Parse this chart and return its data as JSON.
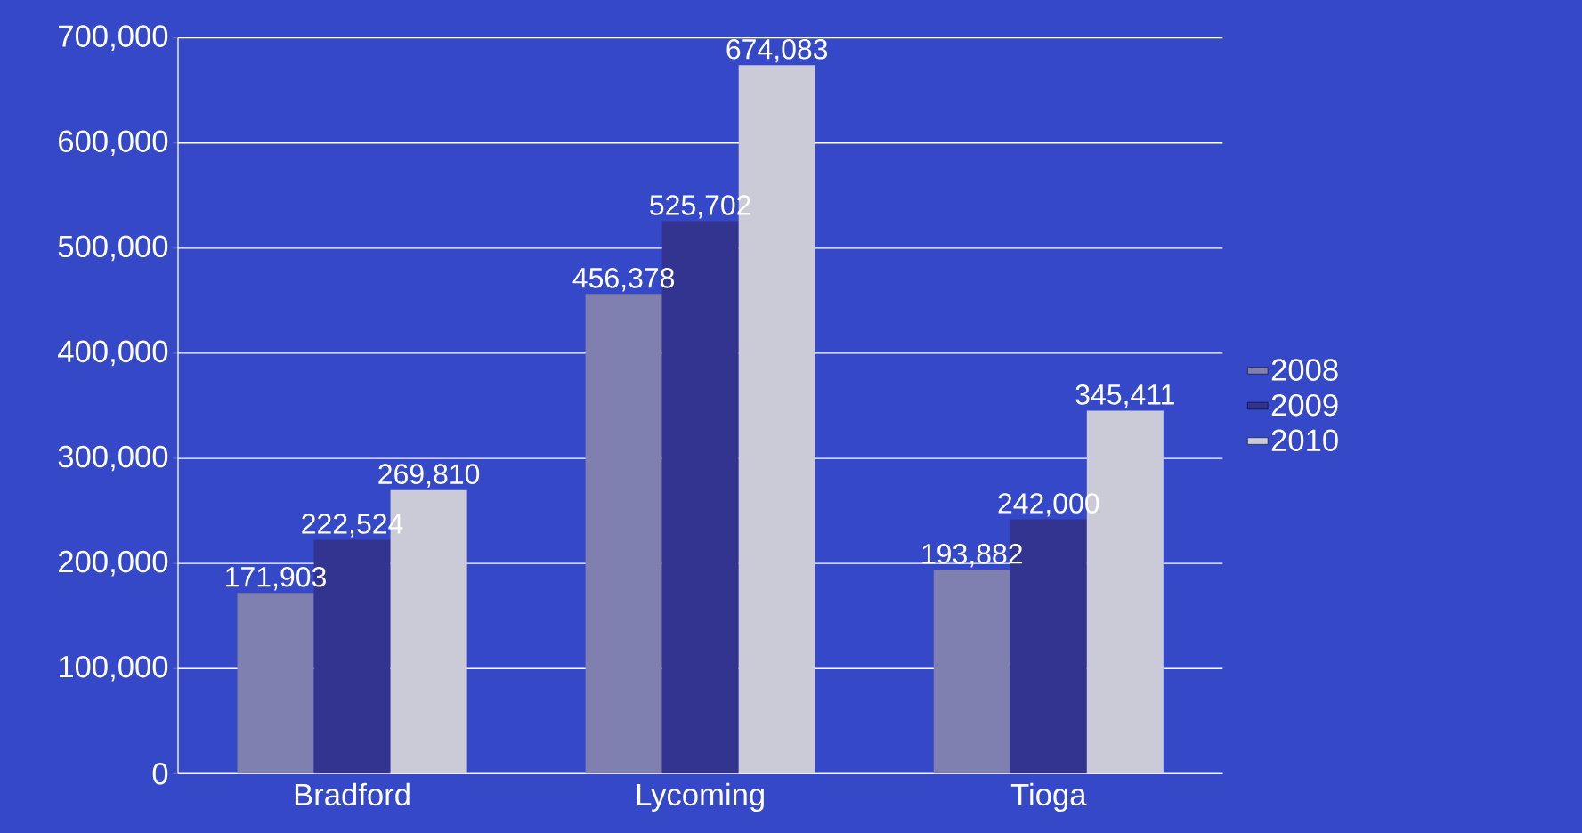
{
  "chart_data": {
    "type": "bar",
    "categories": [
      "Bradford",
      "Lycoming",
      "Tioga"
    ],
    "series": [
      {
        "name": "2008",
        "color": "#7f7fb0",
        "values": [
          171903,
          456378,
          193882
        ],
        "value_labels": [
          "171,903",
          "456,378",
          "193,882"
        ]
      },
      {
        "name": "2009",
        "color": "#333390",
        "values": [
          222524,
          525702,
          242000
        ],
        "value_labels": [
          "222,524",
          "525,702",
          "242,000"
        ]
      },
      {
        "name": "2010",
        "color": "#cbcbd8",
        "values": [
          269810,
          674083,
          345411
        ],
        "value_labels": [
          "269,810",
          "674,083",
          "345,411"
        ]
      }
    ],
    "ylim": [
      0,
      700000
    ],
    "yticks": [
      {
        "value": 0,
        "label": "0"
      },
      {
        "value": 100000,
        "label": "100,000"
      },
      {
        "value": 200000,
        "label": "200,000"
      },
      {
        "value": 300000,
        "label": "300,000"
      },
      {
        "value": 400000,
        "label": "400,000"
      },
      {
        "value": 500000,
        "label": "500,000"
      },
      {
        "value": 600000,
        "label": "600,000"
      },
      {
        "value": 700000,
        "label": "700,000"
      }
    ],
    "grid": "y",
    "legend": "right"
  }
}
